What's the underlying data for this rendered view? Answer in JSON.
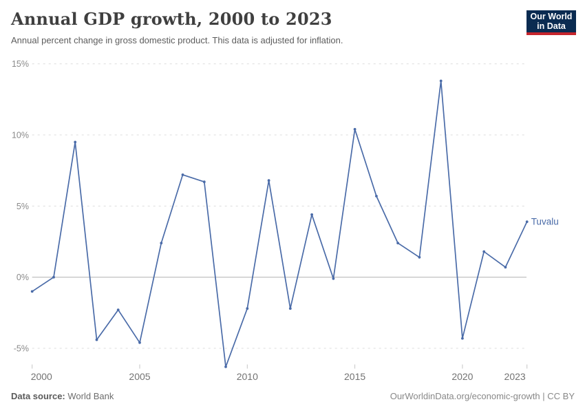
{
  "header": {
    "title": "Annual GDP growth, 2000 to 2023",
    "subtitle": "Annual percent change in gross domestic product. This data is adjusted for inflation.",
    "logo_line1": "Our World",
    "logo_line2": "in Data"
  },
  "chart_data": {
    "type": "line",
    "title": "Annual GDP growth, 2000 to 2023",
    "entity": "Tuvalu",
    "entity_label": "Tuvalu",
    "x": [
      2000,
      2001,
      2002,
      2003,
      2004,
      2005,
      2006,
      2007,
      2008,
      2009,
      2010,
      2011,
      2012,
      2013,
      2014,
      2015,
      2016,
      2017,
      2018,
      2019,
      2020,
      2021,
      2022,
      2023
    ],
    "series": [
      {
        "name": "Tuvalu",
        "values": [
          -1.0,
          0.0,
          9.5,
          -4.4,
          -2.3,
          -4.6,
          2.4,
          7.2,
          6.7,
          -6.3,
          -2.2,
          6.8,
          -2.2,
          4.4,
          -0.1,
          10.4,
          5.7,
          2.4,
          1.4,
          13.8,
          -4.3,
          1.8,
          0.7,
          3.9
        ]
      }
    ],
    "xlabel": "",
    "ylabel": "",
    "y_ticks": [
      15,
      10,
      5,
      0,
      -5
    ],
    "y_tick_labels": [
      "15%",
      "10%",
      "5%",
      "0%",
      "-5%"
    ],
    "x_ticks": [
      2000,
      2005,
      2010,
      2015,
      2020,
      2023
    ],
    "x_tick_labels": [
      "2000",
      "2005",
      "2010",
      "2015",
      "2020",
      "2023"
    ],
    "ylim": [
      -6.6,
      15.2
    ],
    "grid": "horizontal-dashed",
    "legend_position": "end-of-line-label"
  },
  "colors": {
    "line": "#4a6ba8",
    "grid": "#dcdcdc",
    "zero_line": "#b0b0b0",
    "axis_tick_mark": "#c4c4c4",
    "y_axis_text": "#8a8a8a",
    "x_axis_text": "#737373",
    "logo_bg": "#0a2b51",
    "logo_red": "#c5252d"
  },
  "footer": {
    "source_label": "Data source:",
    "source_value": "World Bank",
    "link": "OurWorldinData.org/economic-growth | CC BY"
  }
}
